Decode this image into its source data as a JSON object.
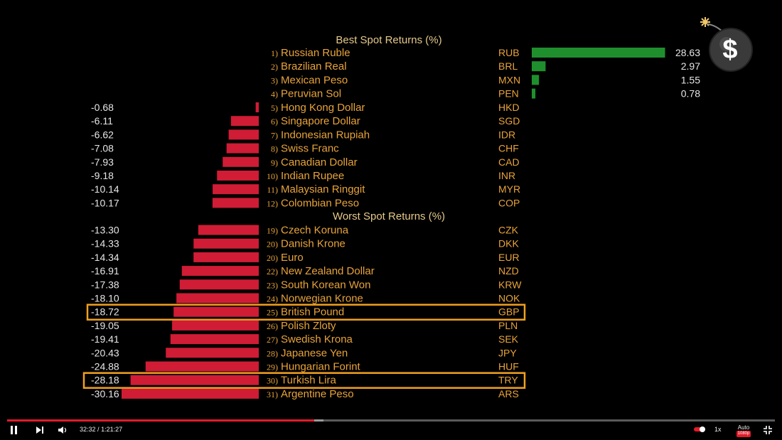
{
  "chart_data": {
    "type": "bar",
    "title_best": "Best Spot Returns (%)",
    "title_worst": "Worst Spot Returns (%)",
    "best": [
      {
        "rank": "1)",
        "name": "Russian Ruble",
        "code": "RUB",
        "value": 28.63
      },
      {
        "rank": "2)",
        "name": "Brazilian Real",
        "code": "BRL",
        "value": 2.97
      },
      {
        "rank": "3)",
        "name": "Mexican Peso",
        "code": "MXN",
        "value": 1.55
      },
      {
        "rank": "4)",
        "name": "Peruvian Sol",
        "code": "PEN",
        "value": 0.78
      }
    ],
    "negatives_top": [
      {
        "rank": "5)",
        "name": "Hong Kong Dollar",
        "code": "HKD",
        "value": -0.68
      },
      {
        "rank": "6)",
        "name": "Singapore Dollar",
        "code": "SGD",
        "value": -6.11
      },
      {
        "rank": "7)",
        "name": "Indonesian Rupiah",
        "code": "IDR",
        "value": -6.62
      },
      {
        "rank": "8)",
        "name": "Swiss Franc",
        "code": "CHF",
        "value": -7.08
      },
      {
        "rank": "9)",
        "name": "Canadian Dollar",
        "code": "CAD",
        "value": -7.93
      },
      {
        "rank": "10)",
        "name": "Indian Rupee",
        "code": "INR",
        "value": -9.18
      },
      {
        "rank": "11)",
        "name": "Malaysian Ringgit",
        "code": "MYR",
        "value": -10.14
      },
      {
        "rank": "12)",
        "name": "Colombian Peso",
        "code": "COP",
        "value": -10.17
      }
    ],
    "worst": [
      {
        "rank": "19)",
        "name": "Czech Koruna",
        "code": "CZK",
        "value": -13.3
      },
      {
        "rank": "20)",
        "name": "Danish Krone",
        "code": "DKK",
        "value": -14.33
      },
      {
        "rank": "20)",
        "name": "Euro",
        "code": "EUR",
        "value": -14.34
      },
      {
        "rank": "22)",
        "name": "New Zealand Dollar",
        "code": "NZD",
        "value": -16.91
      },
      {
        "rank": "23)",
        "name": "South Korean Won",
        "code": "KRW",
        "value": -17.38
      },
      {
        "rank": "24)",
        "name": "Norwegian Krone",
        "code": "NOK",
        "value": -18.1
      },
      {
        "rank": "25)",
        "name": "British Pound",
        "code": "GBP",
        "value": -18.72,
        "highlight": true
      },
      {
        "rank": "26)",
        "name": "Polish Zloty",
        "code": "PLN",
        "value": -19.05
      },
      {
        "rank": "27)",
        "name": "Swedish Krona",
        "code": "SEK",
        "value": -19.41
      },
      {
        "rank": "28)",
        "name": "Japanese Yen",
        "code": "JPY",
        "value": -20.43
      },
      {
        "rank": "29)",
        "name": "Hungarian Forint",
        "code": "HUF",
        "value": -24.88
      },
      {
        "rank": "30)",
        "name": "Turkish Lira",
        "code": "TRY",
        "value": -28.18,
        "highlight": true
      },
      {
        "rank": "31)",
        "name": "Argentine Peso",
        "code": "ARS",
        "value": -30.16
      }
    ],
    "colors": {
      "positive": "#1f8f2e",
      "negative": "#d01c35",
      "highlight": "#f0a020",
      "label": "#e8a33a"
    }
  },
  "logo": {
    "symbol": "$",
    "icon": "bomb-dollar-icon"
  },
  "player": {
    "current_time": "32:32",
    "separator": "/",
    "duration": "1:21:27",
    "speed": "1x",
    "quality": "Auto",
    "quality_badge": "1080p",
    "progress": 0.4,
    "buffered": 0.412
  }
}
